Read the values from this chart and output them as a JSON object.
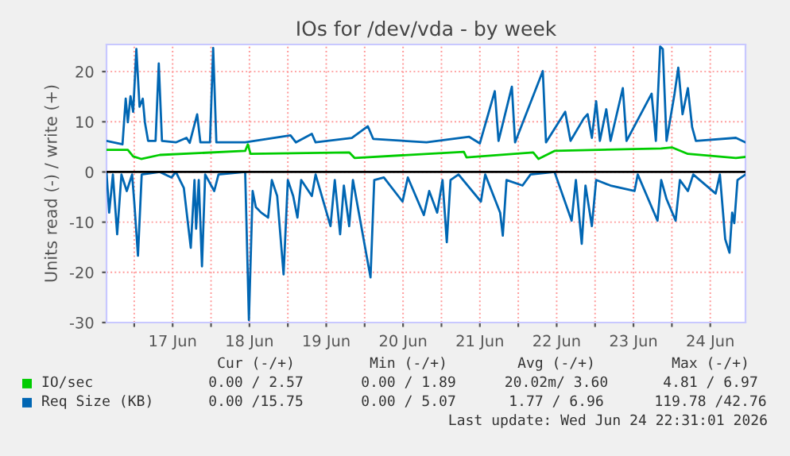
{
  "chart_data": {
    "type": "line",
    "title": "IOs for /dev/vda - by week",
    "ylabel": "Units read (-) / write (+)",
    "xlim": [
      "2026-06-16T15:20",
      "2026-06-24T23:00"
    ],
    "xticks": [
      {
        "value": "2026-06-17T00:00",
        "label": null
      },
      {
        "value": "2026-06-17T12:00",
        "label": "17 Jun"
      },
      {
        "value": "2026-06-18T00:00",
        "label": null
      },
      {
        "value": "2026-06-18T12:00",
        "label": "18 Jun"
      },
      {
        "value": "2026-06-19T00:00",
        "label": null
      },
      {
        "value": "2026-06-19T12:00",
        "label": "19 Jun"
      },
      {
        "value": "2026-06-20T00:00",
        "label": null
      },
      {
        "value": "2026-06-20T12:00",
        "label": "20 Jun"
      },
      {
        "value": "2026-06-21T00:00",
        "label": null
      },
      {
        "value": "2026-06-21T12:00",
        "label": "21 Jun"
      },
      {
        "value": "2026-06-22T00:00",
        "label": null
      },
      {
        "value": "2026-06-22T12:00",
        "label": "22 Jun"
      },
      {
        "value": "2026-06-23T00:00",
        "label": null
      },
      {
        "value": "2026-06-23T12:00",
        "label": "23 Jun"
      },
      {
        "value": "2026-06-24T00:00",
        "label": null
      },
      {
        "value": "2026-06-24T12:00",
        "label": "24 Jun"
      }
    ],
    "ylim": [
      -30,
      25.4
    ],
    "yticks": [
      -30,
      -20,
      -10,
      0,
      10,
      20
    ],
    "grid": true,
    "legend": "bottom",
    "ref_lines": [
      {
        "axis": "y",
        "value": 0,
        "color": "#000000"
      }
    ],
    "series": [
      {
        "name": "Req Size (KB)",
        "color": "#0066b3",
        "x": [
          "2026-06-16T15:20",
          "2026-06-16T20:20",
          "2026-06-16T21:20",
          "2026-06-16T22:00",
          "2026-06-16T22:50",
          "2026-06-16T23:40",
          "2026-06-17T00:40",
          "2026-06-17T01:40",
          "2026-06-17T02:40",
          "2026-06-17T03:20",
          "2026-06-17T04:20",
          "2026-06-17T06:40",
          "2026-06-17T07:40",
          "2026-06-17T08:40",
          "2026-06-17T13:00",
          "2026-06-17T16:20",
          "2026-06-17T17:20",
          "2026-06-17T19:40",
          "2026-06-17T20:40",
          "2026-06-17T23:40",
          "2026-06-18T00:40",
          "2026-06-18T01:40",
          "2026-06-18T10:40",
          "2026-06-19T00:50",
          "2026-06-19T02:30",
          "2026-06-19T07:30",
          "2026-06-19T08:40",
          "2026-06-19T20:00",
          "2026-06-20T01:00",
          "2026-06-20T02:40",
          "2026-06-20T19:20",
          "2026-06-21T08:40",
          "2026-06-21T12:00",
          "2026-06-21T16:40",
          "2026-06-21T17:50",
          "2026-06-21T22:00",
          "2026-06-21T23:00",
          "2026-06-22T07:40",
          "2026-06-22T08:40",
          "2026-06-22T14:40",
          "2026-06-22T16:20",
          "2026-06-22T20:30",
          "2026-06-22T21:40",
          "2026-06-22T23:00",
          "2026-06-23T00:20",
          "2026-06-23T01:30",
          "2026-06-23T03:30",
          "2026-06-23T04:50",
          "2026-06-23T08:40",
          "2026-06-23T09:50",
          "2026-06-23T17:40",
          "2026-06-23T19:00",
          "2026-06-23T20:20",
          "2026-06-23T21:10",
          "2026-06-23T22:20",
          "2026-06-24T00:50",
          "2026-06-24T02:00",
          "2026-06-24T03:20",
          "2026-06-24T05:00",
          "2026-06-24T06:20",
          "2026-06-24T07:30",
          "2026-06-24T20:00",
          "2026-06-24T23:00"
        ],
        "values": [
          6.2,
          5.5,
          14.6,
          9.9,
          15.1,
          12,
          24.5,
          13,
          14.6,
          9.9,
          6.2,
          6.2,
          21.6,
          6.2,
          5.9,
          6.8,
          5.8,
          11.5,
          5.9,
          5.9,
          24.7,
          5.9,
          5.9,
          7.3,
          5.9,
          7.6,
          5.9,
          6.8,
          9.1,
          6.6,
          5.9,
          7,
          5.7,
          16.1,
          6.2,
          17,
          5.9,
          20.1,
          5.9,
          12,
          6.2,
          10.7,
          11.5,
          6.8,
          14.1,
          6.2,
          12.5,
          6.2,
          16.7,
          6.2,
          15.6,
          6.2,
          25,
          24.5,
          6.2,
          15.6,
          20.8,
          11.5,
          16.7,
          8.9,
          6.2,
          6.8,
          5.9
        ]
      },
      {
        "color": "#0066b3",
        "x": [
          "2026-06-16T15:20",
          "2026-06-16T16:10",
          "2026-06-16T17:20",
          "2026-06-16T18:40",
          "2026-06-16T20:00",
          "2026-06-16T21:40",
          "2026-06-16T23:20",
          "2026-06-17T00:00",
          "2026-06-17T01:10",
          "2026-06-17T02:20",
          "2026-06-17T08:00",
          "2026-06-17T11:40",
          "2026-06-17T13:00",
          "2026-06-17T15:30",
          "2026-06-17T17:40",
          "2026-06-17T18:50",
          "2026-06-17T19:20",
          "2026-06-17T20:10",
          "2026-06-17T21:10",
          "2026-06-17T22:10",
          "2026-06-18T01:00",
          "2026-06-18T02:20",
          "2026-06-18T10:40",
          "2026-06-18T11:50",
          "2026-06-18T13:00",
          "2026-06-18T14:00",
          "2026-06-18T15:40",
          "2026-06-18T17:50",
          "2026-06-18T19:00",
          "2026-06-18T20:40",
          "2026-06-18T22:40",
          "2026-06-19T00:00",
          "2026-06-19T01:40",
          "2026-06-19T03:00",
          "2026-06-19T04:10",
          "2026-06-19T07:30",
          "2026-06-19T08:40",
          "2026-06-19T13:20",
          "2026-06-19T14:40",
          "2026-06-19T16:20",
          "2026-06-19T17:30",
          "2026-06-19T19:10",
          "2026-06-19T20:20",
          "2026-06-20T01:50",
          "2026-06-20T03:00",
          "2026-06-20T06:00",
          "2026-06-20T11:50",
          "2026-06-20T13:30",
          "2026-06-20T18:30",
          "2026-06-20T20:10",
          "2026-06-20T22:40",
          "2026-06-21T00:20",
          "2026-06-21T01:40",
          "2026-06-21T02:50",
          "2026-06-21T05:20",
          "2026-06-21T12:20",
          "2026-06-21T13:40",
          "2026-06-21T18:20",
          "2026-06-21T19:10",
          "2026-06-21T20:20",
          "2026-06-22T01:20",
          "2026-06-22T03:50",
          "2026-06-22T11:20",
          "2026-06-22T16:40",
          "2026-06-22T18:00",
          "2026-06-22T19:50",
          "2026-06-22T21:00",
          "2026-06-22T23:00",
          "2026-06-23T00:20",
          "2026-06-23T04:50",
          "2026-06-23T12:20",
          "2026-06-23T13:20",
          "2026-06-23T19:30",
          "2026-06-23T20:40",
          "2026-06-23T22:20",
          "2026-06-24T01:10",
          "2026-06-24T02:30",
          "2026-06-24T05:00",
          "2026-06-24T06:40",
          "2026-06-24T13:40",
          "2026-06-24T15:00",
          "2026-06-24T16:40",
          "2026-06-24T18:00",
          "2026-06-24T18:50",
          "2026-06-24T19:30",
          "2026-06-24T20:30",
          "2026-06-24T23:00"
        ],
        "values": [
          0,
          -8.1,
          -0.5,
          -12.4,
          -0.5,
          -3.8,
          -0.5,
          -5.9,
          -16.7,
          -0.5,
          0,
          -1.1,
          0,
          -3.2,
          -15.1,
          -1.6,
          -11.3,
          -1.6,
          -18.8,
          -0.5,
          -3.8,
          -0.5,
          0,
          -29.5,
          -3.8,
          -7,
          -8.1,
          -9.1,
          -1.6,
          -4.8,
          -20.4,
          -1.6,
          -4.8,
          -9.1,
          -1.6,
          -4.8,
          -0.5,
          -10.8,
          -1.6,
          -12.4,
          -2.7,
          -10.8,
          -1.6,
          -21,
          -1.6,
          -1.1,
          -5.9,
          -1.1,
          -8.6,
          -3.8,
          -8.1,
          -1.6,
          -14,
          -1.6,
          -0.5,
          -5.9,
          -0.5,
          -8.1,
          -12.7,
          -1.6,
          -2.7,
          -0.5,
          0,
          -9.7,
          -1.6,
          -14.3,
          -2.7,
          -10.8,
          -1.6,
          -2.7,
          -3.8,
          -0.5,
          -9.7,
          -1.6,
          -5.4,
          -9.7,
          -1.6,
          -3.8,
          -0.5,
          -4.3,
          -0.5,
          -13.4,
          -16.1,
          -8.1,
          -10.2,
          -1.6,
          -0.5
        ]
      },
      {
        "name": "IO/sec",
        "color": "#00cc00",
        "x": [
          "2026-06-16T15:20",
          "2026-06-16T22:00",
          "2026-06-16T23:40",
          "2026-06-17T02:10",
          "2026-06-17T08:00",
          "2026-06-18T10:40",
          "2026-06-18T11:30",
          "2026-06-18T12:20",
          "2026-06-19T19:10",
          "2026-06-19T20:50",
          "2026-06-21T07:00",
          "2026-06-21T07:50",
          "2026-06-22T04:40",
          "2026-06-22T06:20",
          "2026-06-22T11:20",
          "2026-06-23T20:40",
          "2026-06-24T00:00",
          "2026-06-24T05:00",
          "2026-06-24T20:00",
          "2026-06-24T23:00"
        ],
        "values": [
          4.4,
          4.4,
          3.1,
          2.6,
          3.4,
          4.2,
          5.5,
          3.6,
          3.9,
          2.8,
          4,
          2.9,
          3.9,
          2.6,
          4.2,
          4.7,
          4.9,
          3.6,
          2.8,
          3
        ]
      }
    ],
    "annotations": [
      "Cur (-/+)",
      "Min (-/+)",
      "Avg (-/+)",
      "Max (-/+)",
      "0.00 / 2.57",
      "0.00 / 1.89",
      "20.02m/ 3.60",
      "4.81 / 6.97",
      "0.00 /15.75",
      "0.00 / 5.07",
      "1.77 / 6.96",
      "119.78 /42.76",
      "Last update: Wed Jun 24 22:31:01 2026"
    ]
  }
}
